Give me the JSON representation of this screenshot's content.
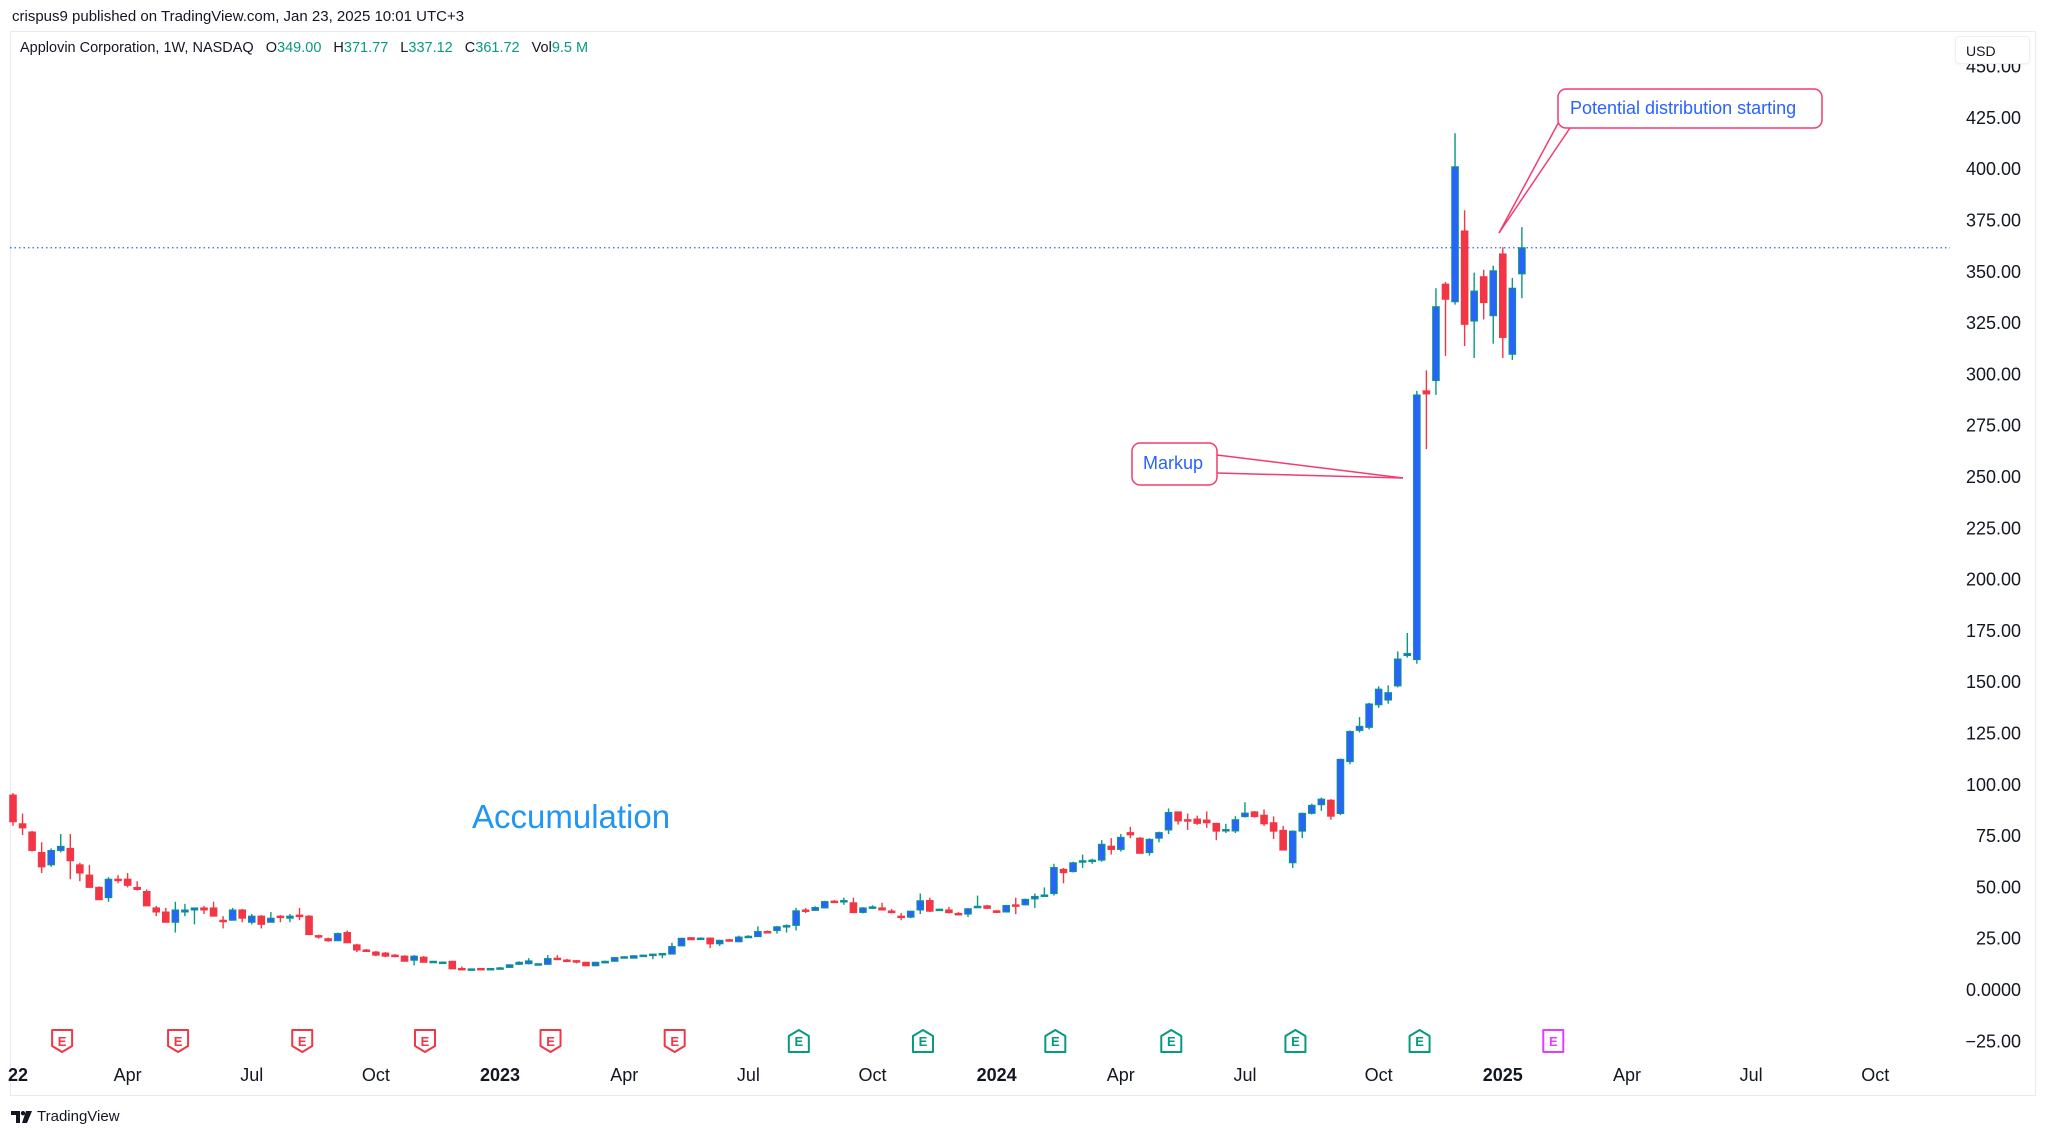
{
  "header": {
    "published": "crispus9 published on TradingView.com, Jan 23, 2025 10:01 UTC+3"
  },
  "legend": {
    "symbol": "Applovin Corporation, 1W, NASDAQ",
    "open_label": "O",
    "open": "349.00",
    "high_label": "H",
    "high": "371.77",
    "low_label": "L",
    "low": "337.12",
    "close_label": "C",
    "close": "361.72",
    "vol_label": "Vol",
    "vol": "9.5 M"
  },
  "currency": "USD",
  "footer": {
    "brand": "TradingView"
  },
  "colors": {
    "up_body": "#2962ff",
    "up_border": "#089981",
    "down": "#f23645",
    "annotation_border": "#f23b6e",
    "annotation_text": "#2962ff",
    "accumulation_text": "#2196f3",
    "price_line": "#2962ff",
    "earnings_reported_red": "#f23645",
    "earnings_reported_green": "#089981",
    "earnings_upcoming": "#e040fb"
  },
  "annotations": {
    "accumulation": "Accumulation",
    "markup": "Markup",
    "distribution": "Potential distribution starting"
  },
  "chart_data": {
    "type": "candlestick",
    "interval": "1W",
    "ylim": [
      -25,
      450
    ],
    "grid": false,
    "current_price": 361.72,
    "y_ticks": [
      {
        "value": -25,
        "label": "−25.00"
      },
      {
        "value": 0,
        "label": "0.0000"
      },
      {
        "value": 25,
        "label": "25.00"
      },
      {
        "value": 50,
        "label": "50.00"
      },
      {
        "value": 75,
        "label": "75.00"
      },
      {
        "value": 100,
        "label": "100.00"
      },
      {
        "value": 125,
        "label": "125.00"
      },
      {
        "value": 150,
        "label": "150.00"
      },
      {
        "value": 175,
        "label": "175.00"
      },
      {
        "value": 200,
        "label": "200.00"
      },
      {
        "value": 225,
        "label": "225.00"
      },
      {
        "value": 250,
        "label": "250.00"
      },
      {
        "value": 275,
        "label": "275.00"
      },
      {
        "value": 300,
        "label": "300.00"
      },
      {
        "value": 325,
        "label": "325.00"
      },
      {
        "value": 350,
        "label": "350.00"
      },
      {
        "value": 375,
        "label": "375.00"
      },
      {
        "value": 400,
        "label": "400.00"
      },
      {
        "value": 425,
        "label": "425.00"
      },
      {
        "value": 450,
        "label": "450.00"
      }
    ],
    "x_ticks": [
      {
        "date": "2022-01-03",
        "label": "22",
        "bold": true
      },
      {
        "date": "2022-04-04",
        "label": "Apr"
      },
      {
        "date": "2022-07-04",
        "label": "Jul"
      },
      {
        "date": "2022-10-03",
        "label": "Oct"
      },
      {
        "date": "2023-01-02",
        "label": "2023",
        "bold": true
      },
      {
        "date": "2023-04-03",
        "label": "Apr"
      },
      {
        "date": "2023-07-03",
        "label": "Jul"
      },
      {
        "date": "2023-10-02",
        "label": "Oct"
      },
      {
        "date": "2024-01-01",
        "label": "2024",
        "bold": true
      },
      {
        "date": "2024-04-01",
        "label": "Apr"
      },
      {
        "date": "2024-07-01",
        "label": "Jul"
      },
      {
        "date": "2024-10-07",
        "label": "Oct"
      },
      {
        "date": "2025-01-06",
        "label": "2025",
        "bold": true
      },
      {
        "date": "2025-04-07",
        "label": "Apr"
      },
      {
        "date": "2025-07-07",
        "label": "Jul"
      },
      {
        "date": "2025-10-06",
        "label": "Oct"
      }
    ],
    "earnings": [
      {
        "date": "2022-02-15",
        "label": "E",
        "status": "red"
      },
      {
        "date": "2022-05-11",
        "label": "E",
        "status": "red"
      },
      {
        "date": "2022-08-10",
        "label": "E",
        "status": "red"
      },
      {
        "date": "2022-11-08",
        "label": "E",
        "status": "red"
      },
      {
        "date": "2023-02-08",
        "label": "E",
        "status": "red"
      },
      {
        "date": "2023-05-10",
        "label": "E",
        "status": "red"
      },
      {
        "date": "2023-08-09",
        "label": "E",
        "status": "green"
      },
      {
        "date": "2023-11-08",
        "label": "E",
        "status": "green"
      },
      {
        "date": "2024-02-13",
        "label": "E",
        "status": "green"
      },
      {
        "date": "2024-05-08",
        "label": "E",
        "status": "green"
      },
      {
        "date": "2024-08-07",
        "label": "E",
        "status": "green"
      },
      {
        "date": "2024-11-06",
        "label": "E",
        "status": "green"
      },
      {
        "date": "2025-02-12",
        "label": "E",
        "status": "upcoming"
      }
    ],
    "candle_fields": [
      "date",
      "open",
      "high",
      "low",
      "close"
    ],
    "candles": [
      [
        "2022-01-10",
        95,
        96,
        80,
        82
      ],
      [
        "2022-01-17",
        81,
        86,
        75.5,
        79
      ],
      [
        "2022-01-24",
        77,
        77.5,
        67.5,
        68
      ],
      [
        "2022-01-31",
        67,
        72,
        57,
        60
      ],
      [
        "2022-02-07",
        61,
        69,
        60,
        68
      ],
      [
        "2022-02-14",
        68,
        76,
        67,
        70
      ],
      [
        "2022-02-21",
        69,
        76,
        54,
        63
      ],
      [
        "2022-02-28",
        61,
        62,
        53,
        57
      ],
      [
        "2022-03-07",
        56,
        61,
        50,
        50
      ],
      [
        "2022-03-14",
        50,
        50.5,
        44,
        44
      ],
      [
        "2022-03-21",
        45,
        55,
        43,
        54
      ],
      [
        "2022-03-28",
        54,
        56,
        52,
        53.5
      ],
      [
        "2022-04-04",
        54,
        57,
        50,
        51
      ],
      [
        "2022-04-11",
        50,
        53,
        48.5,
        49
      ],
      [
        "2022-04-18",
        48,
        49,
        41,
        41
      ],
      [
        "2022-04-25",
        40,
        41,
        36,
        38
      ],
      [
        "2022-05-02",
        38,
        40,
        33,
        33
      ],
      [
        "2022-05-09",
        33,
        43,
        28,
        39
      ],
      [
        "2022-05-16",
        38,
        42,
        36,
        39
      ],
      [
        "2022-05-23",
        39,
        40,
        32,
        40
      ],
      [
        "2022-05-30",
        40,
        41,
        37,
        39
      ],
      [
        "2022-06-06",
        40,
        43,
        36,
        36
      ],
      [
        "2022-06-13",
        34,
        36,
        30,
        33.5
      ],
      [
        "2022-06-20",
        34,
        40,
        34,
        39
      ],
      [
        "2022-06-27",
        39,
        39.5,
        33,
        35
      ],
      [
        "2022-07-04",
        33,
        37,
        32,
        36
      ],
      [
        "2022-07-11",
        36,
        36.5,
        30,
        32
      ],
      [
        "2022-07-18",
        33,
        38,
        33,
        35
      ],
      [
        "2022-07-25",
        36,
        36.5,
        33,
        35.5
      ],
      [
        "2022-08-01",
        35,
        37,
        33,
        36
      ],
      [
        "2022-08-08",
        36.5,
        40,
        34,
        36
      ],
      [
        "2022-08-15",
        36,
        36.5,
        27,
        27
      ],
      [
        "2022-08-22",
        26.5,
        27,
        25,
        26
      ],
      [
        "2022-08-29",
        25,
        25.5,
        23.5,
        24
      ],
      [
        "2022-09-05",
        24,
        28,
        24,
        27.5
      ],
      [
        "2022-09-12",
        28,
        29,
        23,
        23
      ],
      [
        "2022-09-19",
        22,
        22.5,
        18.5,
        19.5
      ],
      [
        "2022-09-26",
        19.5,
        20,
        18.5,
        19
      ],
      [
        "2022-10-03",
        18.5,
        19,
        16.5,
        17
      ],
      [
        "2022-10-10",
        18,
        18.5,
        16,
        16.5
      ],
      [
        "2022-10-17",
        17,
        17.5,
        16,
        16.7
      ],
      [
        "2022-10-24",
        16.5,
        17,
        14,
        14
      ],
      [
        "2022-10-31",
        14.5,
        17,
        12,
        16.5
      ],
      [
        "2022-11-07",
        16,
        16.5,
        13.5,
        13.5
      ],
      [
        "2022-11-14",
        13.7,
        14.2,
        13.3,
        14
      ],
      [
        "2022-11-21",
        13.5,
        13.9,
        13.2,
        13.6
      ],
      [
        "2022-11-28",
        14,
        14.2,
        10.3,
        10.3
      ],
      [
        "2022-12-05",
        10.5,
        11.5,
        9.8,
        10
      ],
      [
        "2022-12-12",
        9.8,
        10.5,
        9.6,
        10.3
      ],
      [
        "2022-12-19",
        10.5,
        10.6,
        9.6,
        9.8
      ],
      [
        "2022-12-26",
        10,
        10.7,
        9.8,
        10.5
      ],
      [
        "2023-01-02",
        10.5,
        11.2,
        10.2,
        10.8
      ],
      [
        "2023-01-09",
        11,
        12.5,
        10.8,
        12.3
      ],
      [
        "2023-01-16",
        12.5,
        14,
        12.2,
        13.5
      ],
      [
        "2023-01-23",
        12.8,
        15.5,
        12.5,
        14.2
      ],
      [
        "2023-01-30",
        12.3,
        13,
        12,
        12.8
      ],
      [
        "2023-02-06",
        12.5,
        17,
        12.3,
        15.3
      ],
      [
        "2023-02-13",
        15.5,
        17,
        14.8,
        15.2
      ],
      [
        "2023-02-20",
        14.6,
        15.2,
        14,
        14.4
      ],
      [
        "2023-02-27",
        14.3,
        14.6,
        13,
        14
      ],
      [
        "2023-03-06",
        13.5,
        13.7,
        11.8,
        11.8
      ],
      [
        "2023-03-13",
        11.8,
        13.7,
        11.6,
        13.5
      ],
      [
        "2023-03-20",
        13.2,
        14.3,
        13,
        14
      ],
      [
        "2023-03-27",
        14,
        15.9,
        13.8,
        15.8
      ],
      [
        "2023-04-03",
        16,
        16.5,
        15.7,
        16.2
      ],
      [
        "2023-04-10",
        15.5,
        16.9,
        15.3,
        16.7
      ],
      [
        "2023-04-17",
        16.8,
        17.3,
        16.5,
        17
      ],
      [
        "2023-04-24",
        17,
        17.7,
        15,
        17.5
      ],
      [
        "2023-05-01",
        17.5,
        17.9,
        15.5,
        17.8
      ],
      [
        "2023-05-08",
        17.5,
        23,
        17.3,
        21.2
      ],
      [
        "2023-05-15",
        21.5,
        25.5,
        21.3,
        25.2
      ],
      [
        "2023-05-22",
        25.5,
        25.8,
        24.3,
        24.5
      ],
      [
        "2023-05-29",
        25,
        25.6,
        24.6,
        25.3
      ],
      [
        "2023-06-05",
        25.3,
        25.6,
        20.5,
        22.5
      ],
      [
        "2023-06-12",
        22.5,
        24.5,
        21.5,
        24.2
      ],
      [
        "2023-06-19",
        24.5,
        24.8,
        23.5,
        24.2
      ],
      [
        "2023-06-26",
        23.5,
        26.5,
        23.3,
        25.8
      ],
      [
        "2023-07-03",
        25.8,
        26.7,
        25.5,
        26.2
      ],
      [
        "2023-07-10",
        26,
        31,
        25.8,
        28.5
      ],
      [
        "2023-07-17",
        28.5,
        29,
        27.8,
        28.2
      ],
      [
        "2023-07-24",
        29,
        31.2,
        27.5,
        30.8
      ],
      [
        "2023-07-31",
        31,
        32,
        28,
        31.4
      ],
      [
        "2023-08-07",
        31.5,
        40,
        29,
        38.6
      ],
      [
        "2023-08-14",
        39,
        40,
        37.5,
        38.8
      ],
      [
        "2023-08-21",
        38.8,
        40.8,
        38.5,
        40.2
      ],
      [
        "2023-08-28",
        40,
        43.5,
        39.8,
        43.1
      ],
      [
        "2023-09-04",
        43.3,
        43.8,
        42.6,
        43
      ],
      [
        "2023-09-11",
        43.3,
        45,
        41.5,
        43.6
      ],
      [
        "2023-09-18",
        42.5,
        45,
        37.5,
        37.7
      ],
      [
        "2023-09-25",
        37.8,
        40.4,
        37.3,
        40
      ],
      [
        "2023-10-02",
        40.2,
        41.3,
        39.5,
        40.5
      ],
      [
        "2023-10-09",
        40,
        42.5,
        38.7,
        39
      ],
      [
        "2023-10-16",
        38.5,
        39.5,
        37.3,
        37.7
      ],
      [
        "2023-10-23",
        36,
        37.5,
        34,
        35.5
      ],
      [
        "2023-10-30",
        35.5,
        38.6,
        35,
        38.4
      ],
      [
        "2023-11-06",
        39,
        47,
        37,
        43.5
      ],
      [
        "2023-11-13",
        43.6,
        45,
        38,
        38.4
      ],
      [
        "2023-11-20",
        39,
        39.6,
        38.6,
        39.4
      ],
      [
        "2023-11-27",
        39,
        40.5,
        37.3,
        37.7
      ],
      [
        "2023-12-04",
        37.3,
        38,
        36.3,
        37
      ],
      [
        "2023-12-11",
        37,
        40,
        35.6,
        39.6
      ],
      [
        "2023-12-18",
        40.4,
        46,
        40,
        40.8
      ],
      [
        "2023-12-25",
        41,
        41.5,
        39.5,
        39.8
      ],
      [
        "2024-01-01",
        38.6,
        38.9,
        37.5,
        37.8
      ],
      [
        "2024-01-08",
        38,
        41.5,
        37.8,
        41.2
      ],
      [
        "2024-01-15",
        41.5,
        45,
        37,
        41.3
      ],
      [
        "2024-01-22",
        41.5,
        44.5,
        41.2,
        44.2
      ],
      [
        "2024-01-29",
        44.4,
        47,
        40,
        45.6
      ],
      [
        "2024-02-05",
        45.7,
        50,
        45.5,
        46.3
      ],
      [
        "2024-02-12",
        47,
        61.5,
        46,
        59.7
      ],
      [
        "2024-02-19",
        58.8,
        59.5,
        52,
        57.2
      ],
      [
        "2024-02-26",
        57.7,
        62.5,
        57.3,
        62
      ],
      [
        "2024-03-04",
        62.7,
        66,
        59.5,
        63
      ],
      [
        "2024-03-11",
        63,
        64,
        61.5,
        63.3
      ],
      [
        "2024-03-18",
        63.3,
        73,
        62.5,
        71
      ],
      [
        "2024-03-25",
        70.1,
        74,
        66,
        68.5
      ],
      [
        "2024-04-01",
        68.5,
        76,
        67.5,
        74.4
      ],
      [
        "2024-04-08",
        76.7,
        79.5,
        74,
        75.6
      ],
      [
        "2024-04-15",
        74,
        74.5,
        66.5,
        66.6
      ],
      [
        "2024-04-22",
        67,
        74,
        65.5,
        73.4
      ],
      [
        "2024-04-29",
        74,
        77.2,
        72,
        76.7
      ],
      [
        "2024-05-06",
        78,
        88.5,
        76,
        86.5
      ],
      [
        "2024-05-13",
        86.8,
        87,
        80.6,
        82.4
      ],
      [
        "2024-05-20",
        83,
        86,
        78,
        82.8
      ],
      [
        "2024-05-27",
        83.3,
        85,
        80.5,
        81.2
      ],
      [
        "2024-06-03",
        82.8,
        87,
        79,
        81.5
      ],
      [
        "2024-06-10",
        81.2,
        81.5,
        73,
        77.4
      ],
      [
        "2024-06-17",
        78,
        81,
        76.5,
        78.2
      ],
      [
        "2024-06-24",
        77.5,
        84.7,
        76.5,
        83
      ],
      [
        "2024-07-01",
        84.5,
        91.5,
        84,
        86.2
      ],
      [
        "2024-07-08",
        86.8,
        87.2,
        84,
        84.5
      ],
      [
        "2024-07-15",
        85.2,
        88,
        80,
        81
      ],
      [
        "2024-07-22",
        81.5,
        84.6,
        73.6,
        77.4
      ],
      [
        "2024-07-29",
        77.8,
        80,
        68,
        68.2
      ],
      [
        "2024-08-05",
        62,
        77.8,
        59.5,
        77.4
      ],
      [
        "2024-08-12",
        77.4,
        86.5,
        74,
        86.1
      ],
      [
        "2024-08-19",
        86.1,
        90.8,
        85.5,
        90
      ],
      [
        "2024-08-26",
        90.3,
        93.8,
        87.3,
        93
      ],
      [
        "2024-09-02",
        92.5,
        93,
        83,
        84.7
      ],
      [
        "2024-09-09",
        86,
        112.8,
        85.3,
        112.4
      ],
      [
        "2024-09-16",
        111.3,
        126.5,
        110,
        126
      ],
      [
        "2024-09-23",
        126.5,
        133,
        125.5,
        128.5
      ],
      [
        "2024-09-30",
        128,
        140,
        127,
        139.4
      ],
      [
        "2024-10-07",
        139,
        148,
        137.5,
        146.6
      ],
      [
        "2024-10-14",
        141.3,
        148.5,
        139.5,
        144.9
      ],
      [
        "2024-10-21",
        148.2,
        165,
        147.5,
        161.3
      ],
      [
        "2024-10-28",
        163,
        174,
        162,
        164
      ],
      [
        "2024-11-04",
        161,
        292,
        159,
        290
      ],
      [
        "2024-11-11",
        292,
        302,
        263.6,
        290.5
      ],
      [
        "2024-11-18",
        297,
        342,
        290,
        333
      ],
      [
        "2024-11-25",
        344,
        345,
        309,
        336.6
      ],
      [
        "2024-12-02",
        335.4,
        417.5,
        334,
        401.2
      ],
      [
        "2024-12-09",
        369.9,
        380,
        313.8,
        324.4
      ],
      [
        "2024-12-16",
        326,
        349.6,
        308,
        340.6
      ],
      [
        "2024-12-23",
        347.6,
        351,
        326.8,
        335
      ],
      [
        "2024-12-30",
        328.6,
        353,
        315,
        350.5
      ],
      [
        "2025-01-06",
        358.7,
        362,
        308,
        318
      ],
      [
        "2025-01-13",
        309.8,
        347,
        307,
        342
      ],
      [
        "2025-01-20",
        349,
        371.77,
        337.12,
        361.72
      ]
    ]
  }
}
